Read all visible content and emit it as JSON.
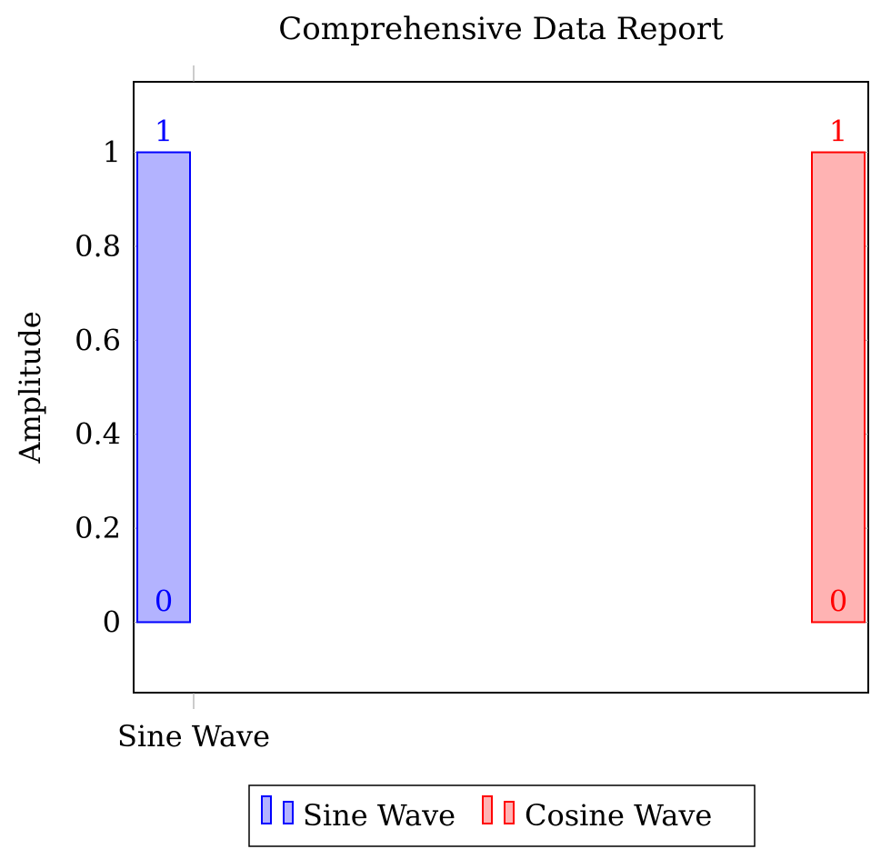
{
  "chart_data": {
    "type": "bar",
    "title": "Comprehensive Data Report",
    "xlabel": "",
    "ylabel": "Amplitude",
    "ylim": [
      -0.15,
      1.15
    ],
    "yticks": [
      0,
      0.2,
      0.4,
      0.6,
      0.8,
      1
    ],
    "ytick_labels": [
      "0",
      "0.2",
      "0.4",
      "0.6",
      "0.8",
      "1"
    ],
    "xtick_labels": [
      "Sine Wave"
    ],
    "grid": false,
    "legend_position": "bottom",
    "series": [
      {
        "name": "Sine Wave",
        "color": "#0000ff",
        "fill": "#b3b3ff",
        "bars": [
          {
            "low": 0,
            "high": 1
          }
        ],
        "labels": [
          "0",
          "1"
        ]
      },
      {
        "name": "Cosine Wave",
        "color": "#ff0000",
        "fill": "#ffb3b3",
        "bars": [
          {
            "low": 0,
            "high": 1
          }
        ],
        "labels": [
          "0",
          "1"
        ]
      }
    ]
  }
}
